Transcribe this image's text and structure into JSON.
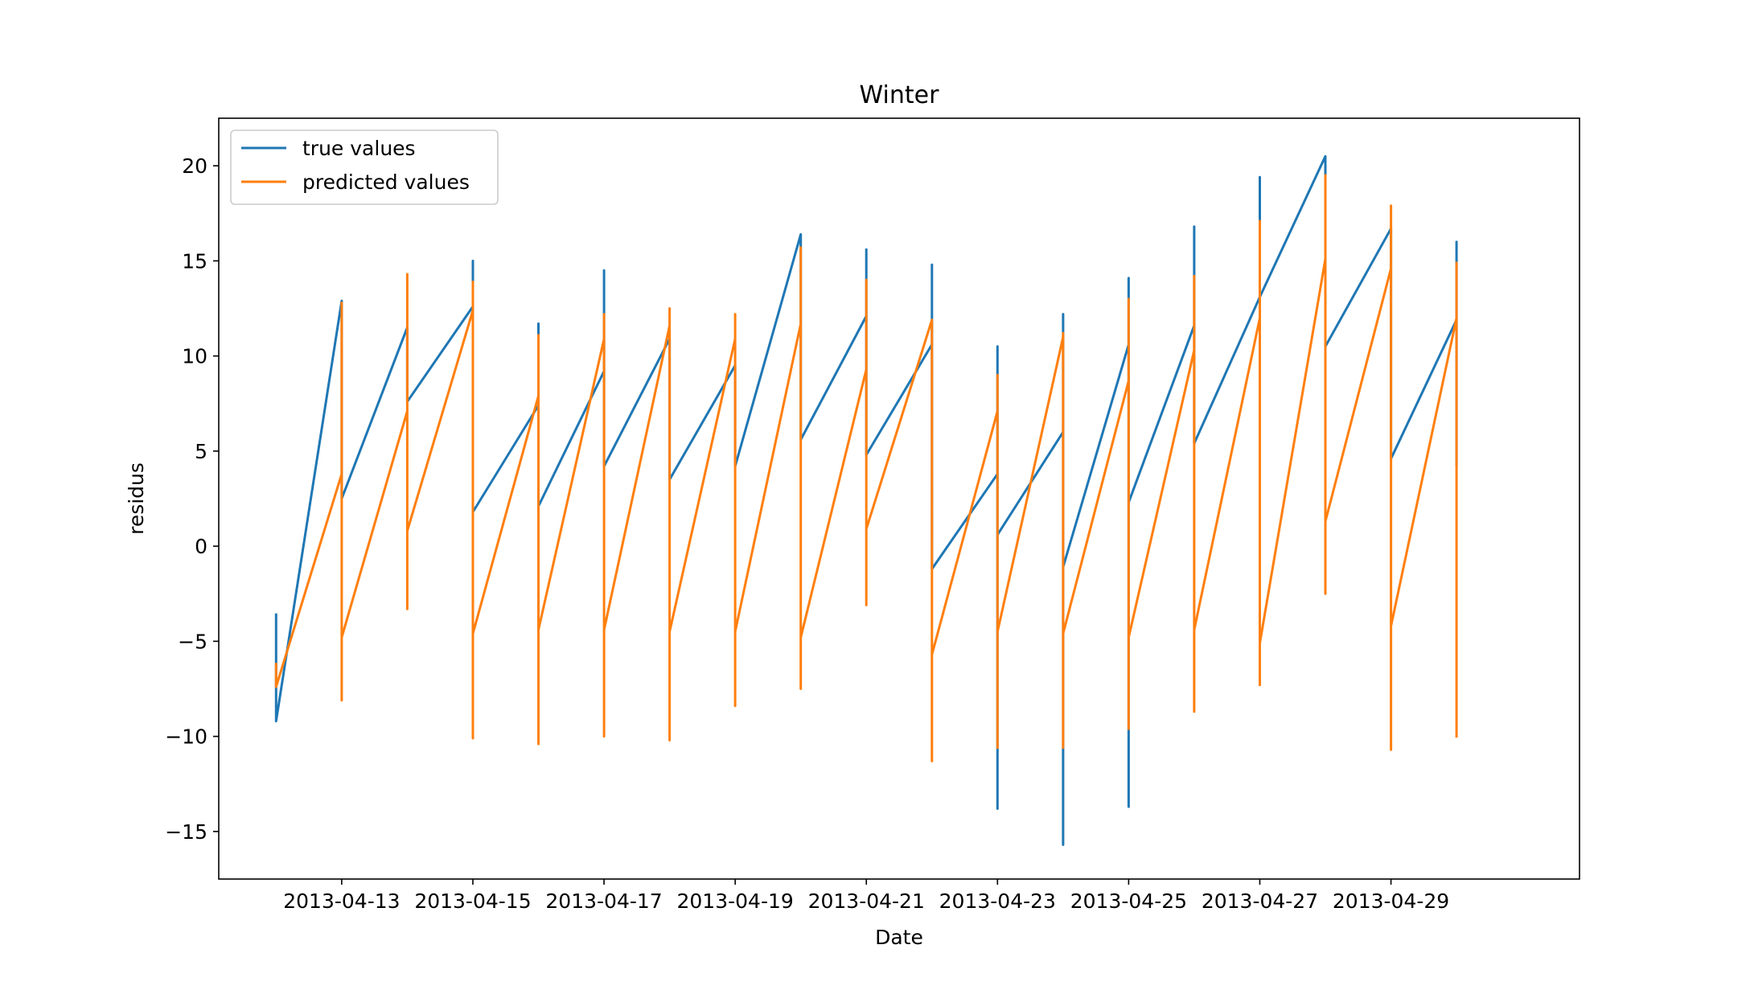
{
  "chart_data": {
    "type": "line",
    "title": "Winter",
    "xlabel": "Date",
    "ylabel": "residus",
    "xlim": [
      "2013-04-11T03:00",
      "2013-05-01T21:00"
    ],
    "ylim": [
      -17.5,
      22.5
    ],
    "yticks": [
      -15,
      -10,
      -5,
      0,
      5,
      10,
      15,
      20
    ],
    "xticks": [
      "2013-04-13",
      "2013-04-15",
      "2013-04-17",
      "2013-04-19",
      "2013-04-21",
      "2013-04-23",
      "2013-04-25",
      "2013-04-27",
      "2013-04-29"
    ],
    "grid": false,
    "legend": {
      "placement": "upper left"
    },
    "series": [
      {
        "name": "true values",
        "color": "#1f77b4",
        "points": [
          [
            "2013-04-12",
            -3.6
          ],
          [
            "2013-04-12",
            -9.2
          ],
          [
            "2013-04-13",
            12.9
          ],
          [
            "2013-04-13",
            2.5
          ],
          [
            "2013-04-14",
            11.5
          ],
          [
            "2013-04-14",
            7.6
          ],
          [
            "2013-04-15",
            12.6
          ],
          [
            "2013-04-15",
            15.0
          ],
          [
            "2013-04-15",
            1.8
          ],
          [
            "2013-04-16",
            7.4
          ],
          [
            "2013-04-16",
            11.7
          ],
          [
            "2013-04-16",
            2.1
          ],
          [
            "2013-04-17",
            9.2
          ],
          [
            "2013-04-17",
            14.5
          ],
          [
            "2013-04-17",
            4.2
          ],
          [
            "2013-04-18",
            10.9
          ],
          [
            "2013-04-18",
            3.5
          ],
          [
            "2013-04-19",
            9.5
          ],
          [
            "2013-04-19",
            4.2
          ],
          [
            "2013-04-20",
            16.4
          ],
          [
            "2013-04-20",
            5.6
          ],
          [
            "2013-04-21",
            12.1
          ],
          [
            "2013-04-21",
            15.6
          ],
          [
            "2013-04-21",
            4.8
          ],
          [
            "2013-04-22",
            10.6
          ],
          [
            "2013-04-22",
            14.8
          ],
          [
            "2013-04-22",
            -1.2
          ],
          [
            "2013-04-23",
            3.8
          ],
          [
            "2013-04-23",
            10.5
          ],
          [
            "2013-04-23",
            -13.8
          ],
          [
            "2013-04-23",
            0.6
          ],
          [
            "2013-04-24",
            6.0
          ],
          [
            "2013-04-24",
            12.2
          ],
          [
            "2013-04-24",
            -15.7
          ],
          [
            "2013-04-24",
            -1.1
          ],
          [
            "2013-04-25",
            10.6
          ],
          [
            "2013-04-25",
            14.1
          ],
          [
            "2013-04-25",
            -13.7
          ],
          [
            "2013-04-25",
            2.3
          ],
          [
            "2013-04-26",
            11.6
          ],
          [
            "2013-04-26",
            16.8
          ],
          [
            "2013-04-26",
            5.4
          ],
          [
            "2013-04-27",
            13.1
          ],
          [
            "2013-04-27",
            19.4
          ],
          [
            "2013-04-27",
            13.1
          ],
          [
            "2013-04-28",
            20.5
          ],
          [
            "2013-04-28",
            10.5
          ],
          [
            "2013-04-29",
            16.7
          ],
          [
            "2013-04-29",
            4.6
          ],
          [
            "2013-04-30",
            11.9
          ],
          [
            "2013-04-30",
            16.0
          ],
          [
            "2013-04-30",
            4.3
          ]
        ]
      },
      {
        "name": "predicted values",
        "color": "#ff7f0e",
        "points": [
          [
            "2013-04-12",
            -6.2
          ],
          [
            "2013-04-12",
            -7.4
          ],
          [
            "2013-04-13",
            3.8
          ],
          [
            "2013-04-13",
            12.8
          ],
          [
            "2013-04-13",
            -8.1
          ],
          [
            "2013-04-13",
            -4.8
          ],
          [
            "2013-04-14",
            7.1
          ],
          [
            "2013-04-14",
            14.3
          ],
          [
            "2013-04-14",
            -3.3
          ],
          [
            "2013-04-14",
            0.8
          ],
          [
            "2013-04-15",
            12.4
          ],
          [
            "2013-04-15",
            13.9
          ],
          [
            "2013-04-15",
            -10.1
          ],
          [
            "2013-04-15",
            -4.6
          ],
          [
            "2013-04-16",
            7.9
          ],
          [
            "2013-04-16",
            11.1
          ],
          [
            "2013-04-16",
            -10.4
          ],
          [
            "2013-04-16",
            -4.4
          ],
          [
            "2013-04-17",
            10.9
          ],
          [
            "2013-04-17",
            12.2
          ],
          [
            "2013-04-17",
            -10.0
          ],
          [
            "2013-04-17",
            -4.4
          ],
          [
            "2013-04-18",
            11.6
          ],
          [
            "2013-04-18",
            12.5
          ],
          [
            "2013-04-18",
            -10.2
          ],
          [
            "2013-04-18",
            -4.5
          ],
          [
            "2013-04-19",
            10.9
          ],
          [
            "2013-04-19",
            12.2
          ],
          [
            "2013-04-19",
            -8.4
          ],
          [
            "2013-04-19",
            -4.5
          ],
          [
            "2013-04-20",
            11.7
          ],
          [
            "2013-04-20",
            15.7
          ],
          [
            "2013-04-20",
            -7.5
          ],
          [
            "2013-04-20",
            -4.8
          ],
          [
            "2013-04-21",
            9.3
          ],
          [
            "2013-04-21",
            14.0
          ],
          [
            "2013-04-21",
            -3.1
          ],
          [
            "2013-04-21",
            0.9
          ],
          [
            "2013-04-22",
            11.9
          ],
          [
            "2013-04-22",
            11.9
          ],
          [
            "2013-04-22",
            -11.3
          ],
          [
            "2013-04-22",
            -5.7
          ],
          [
            "2013-04-23",
            7.1
          ],
          [
            "2013-04-23",
            9.0
          ],
          [
            "2013-04-23",
            -10.6
          ],
          [
            "2013-04-23",
            -4.5
          ],
          [
            "2013-04-24",
            11.0
          ],
          [
            "2013-04-24",
            11.2
          ],
          [
            "2013-04-24",
            -10.6
          ],
          [
            "2013-04-24",
            -4.6
          ],
          [
            "2013-04-25",
            8.7
          ],
          [
            "2013-04-25",
            13.0
          ],
          [
            "2013-04-25",
            -9.6
          ],
          [
            "2013-04-25",
            -4.8
          ],
          [
            "2013-04-26",
            10.3
          ],
          [
            "2013-04-26",
            14.2
          ],
          [
            "2013-04-26",
            -8.7
          ],
          [
            "2013-04-26",
            -4.4
          ],
          [
            "2013-04-27",
            12.0
          ],
          [
            "2013-04-27",
            17.1
          ],
          [
            "2013-04-27",
            -7.3
          ],
          [
            "2013-04-27",
            -5.1
          ],
          [
            "2013-04-28",
            15.1
          ],
          [
            "2013-04-28",
            19.5
          ],
          [
            "2013-04-28",
            -2.5
          ],
          [
            "2013-04-28",
            1.3
          ],
          [
            "2013-04-29",
            14.6
          ],
          [
            "2013-04-29",
            17.9
          ],
          [
            "2013-04-29",
            -10.7
          ],
          [
            "2013-04-29",
            -4.2
          ],
          [
            "2013-04-30",
            12.0
          ],
          [
            "2013-04-30",
            14.9
          ],
          [
            "2013-04-30",
            -10.0
          ]
        ]
      }
    ]
  }
}
